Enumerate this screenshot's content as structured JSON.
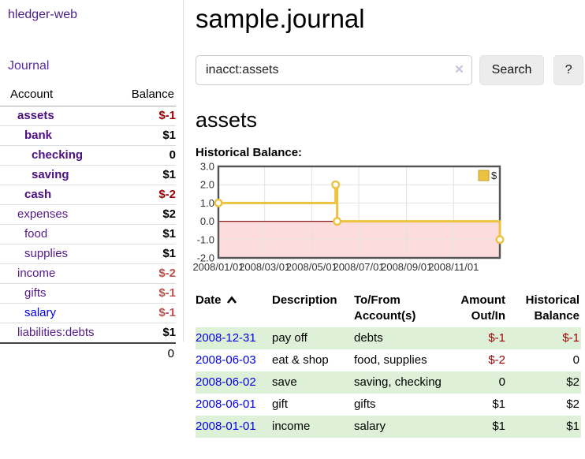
{
  "app": {
    "brand": "hledger-web"
  },
  "sidebar": {
    "journal_link": "Journal",
    "accounts_table": {
      "headers": {
        "account": "Account",
        "balance": "Balance"
      },
      "items": [
        {
          "name": "assets",
          "balance": "$-1",
          "depth": 1
        },
        {
          "name": "bank",
          "balance": "$1",
          "depth": 2
        },
        {
          "name": "checking",
          "balance": "0",
          "depth": 3
        },
        {
          "name": "saving",
          "balance": "$1",
          "depth": 3
        },
        {
          "name": "cash",
          "balance": "$-2",
          "depth": 2
        },
        {
          "name": "expenses",
          "balance": "$2",
          "depth": 1
        },
        {
          "name": "food",
          "balance": "$1",
          "depth": 2
        },
        {
          "name": "supplies",
          "balance": "$1",
          "depth": 2
        },
        {
          "name": "income",
          "balance": "$-2",
          "depth": 1
        },
        {
          "name": "gifts",
          "balance": "$-1",
          "depth": 2
        },
        {
          "name": "salary",
          "balance": "$-1",
          "depth": 2
        },
        {
          "name": "liabilities:debts",
          "balance": "$1",
          "depth": 1
        }
      ],
      "total": "0"
    }
  },
  "main": {
    "title": "sample.journal",
    "search": {
      "value": "inacct:assets",
      "clear_icon": "✕",
      "search_button": "Search",
      "help_button": "?"
    },
    "account_heading": "assets",
    "chart_label": "Historical Balance:",
    "table": {
      "headers": {
        "date": "Date",
        "description": "Description",
        "accounts": "To/From Account(s)",
        "amount": "Amount Out/In",
        "balance": "Historical Balance"
      },
      "rows": [
        {
          "date": "2008-12-31",
          "description": "pay off",
          "accounts": "debts",
          "amount": "$-1",
          "balance": "$-1"
        },
        {
          "date": "2008-06-03",
          "description": "eat & shop",
          "accounts": "food, supplies",
          "amount": "$-2",
          "balance": "0"
        },
        {
          "date": "2008-06-02",
          "description": "save",
          "accounts": "saving, checking",
          "amount": "0",
          "balance": "$2"
        },
        {
          "date": "2008-06-01",
          "description": "gift",
          "accounts": "gifts",
          "amount": "$1",
          "balance": "$2"
        },
        {
          "date": "2008-01-01",
          "description": "income",
          "accounts": "salary",
          "amount": "$1",
          "balance": "$1"
        }
      ]
    }
  },
  "chart_data": {
    "type": "line",
    "subtype": "step-after",
    "title": "Historical Balance:",
    "series": [
      {
        "name": "$",
        "color": "#edc240",
        "points": [
          [
            "2008-01-01",
            1
          ],
          [
            "2008-06-01",
            2
          ],
          [
            "2008-06-03",
            0
          ],
          [
            "2008-12-31",
            -1
          ]
        ]
      }
    ],
    "x_tick_labels": [
      "2008/01/01",
      "2008/03/01",
      "2008/05/01",
      "2008/07/01",
      "2008/09/01",
      "2008/11/01"
    ],
    "y_ticks": [
      3,
      2,
      1,
      0,
      -1,
      -2
    ],
    "xlim": [
      "2008-01-01",
      "2008-12-31"
    ],
    "ylim": [
      -2,
      3
    ],
    "grid": true,
    "legend_position": "top-right",
    "colors": {
      "series": "#edc240",
      "series_point_fill": "#ffffff",
      "legend_box_border": "#bfa032",
      "grid": "#e3e3e3",
      "zero_line": "#8b1a1a",
      "negative_fill": "#fcdcdc",
      "border": "#545454",
      "axis_text": "#333333"
    }
  },
  "colors": {
    "brand_purple": "#4a1d8a",
    "account_link_purple": "#551a8b",
    "link_blue": "#0000e6",
    "negative_dark_red": "#9c0001",
    "negative_light_red": "#c0504d",
    "row_stripe_green": "#dff0d8"
  }
}
